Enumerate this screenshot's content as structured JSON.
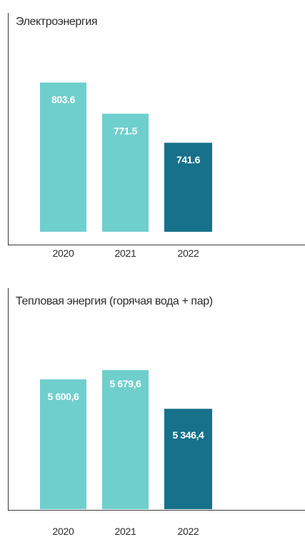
{
  "chart_data": [
    {
      "type": "bar",
      "title": "Электроэнергия",
      "categories": [
        "2020",
        "2021",
        "2022"
      ],
      "values": [
        803.6,
        771.5,
        741.6
      ],
      "value_labels": [
        "803.6",
        "771.5",
        "741.6"
      ],
      "colors": [
        "#6fcfcd",
        "#6fcfcd",
        "#17718a"
      ],
      "ylim": [
        650,
        810
      ],
      "grid": false,
      "legend": "none"
    },
    {
      "type": "bar",
      "title": "Тепловая энергия (горячая вода + пар)",
      "categories": [
        "2020",
        "2021",
        "2022"
      ],
      "values": [
        5600.6,
        5679.6,
        5346.4
      ],
      "value_labels": [
        "5 600,6",
        "5 679,6",
        "5 346,4"
      ],
      "colors": [
        "#6fcfcd",
        "#6fcfcd",
        "#17718a"
      ],
      "ylim": [
        4480,
        6000
      ],
      "grid": false,
      "legend": "none"
    }
  ]
}
